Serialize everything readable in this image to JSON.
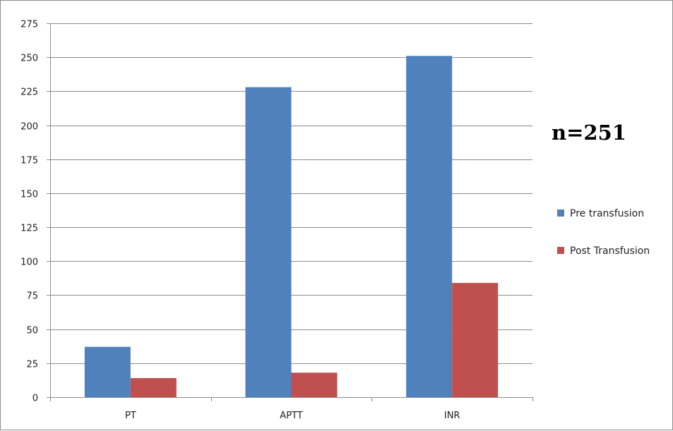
{
  "chart_data": {
    "type": "bar",
    "title": "",
    "xlabel": "",
    "ylabel": "",
    "categories": [
      "PT",
      "APTT",
      "INR"
    ],
    "series": [
      {
        "name": "Pre transfusion",
        "color": "#4F81BD",
        "values": [
          37,
          228,
          251
        ]
      },
      {
        "name": "Post Transfusion",
        "color": "#C0504D",
        "values": [
          14,
          18,
          84
        ]
      }
    ],
    "ylim": [
      0,
      275
    ],
    "yticks": [
      0,
      25,
      50,
      75,
      100,
      125,
      150,
      175,
      200,
      225,
      250,
      275
    ],
    "grid": true,
    "legend_position": "right",
    "annotation": "n=251"
  }
}
